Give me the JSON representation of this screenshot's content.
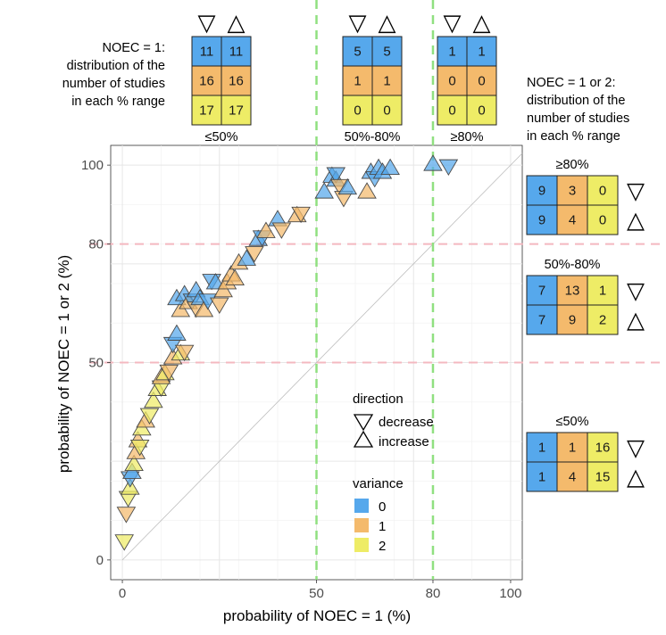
{
  "chart_data": {
    "type": "scatter",
    "xlabel": "probability of NOEC = 1 (%)",
    "ylabel": "probability of NOEC = 1 or 2 (%)",
    "xlim": [
      -3,
      103
    ],
    "ylim": [
      -5,
      105
    ],
    "x_ticks": [
      0,
      50,
      80,
      100
    ],
    "y_ticks": [
      0,
      50,
      80,
      100
    ],
    "grid": true,
    "reference_lines": {
      "vertical": [
        50,
        80
      ],
      "horizontal": [
        50,
        80
      ],
      "diagonal": true
    },
    "legend": {
      "placement": "inside-bottom-right",
      "direction_title": "direction",
      "direction_entries": [
        "decrease",
        "increase"
      ],
      "variance_title": "variance",
      "variance_entries": [
        "0",
        "1",
        "2"
      ]
    },
    "colors": {
      "0": "#56a8ec",
      "1": "#f4ba6c",
      "2": "#eeec66",
      "ref_vertical": "#90e080",
      "ref_horizontal": "#f4b8c0"
    },
    "points": [
      {
        "x": 0.5,
        "y": 5,
        "v": 2,
        "d": "decrease"
      },
      {
        "x": 1,
        "y": 12,
        "v": 1,
        "d": "decrease"
      },
      {
        "x": 1.5,
        "y": 16,
        "v": 2,
        "d": "decrease"
      },
      {
        "x": 2,
        "y": 18,
        "v": 2,
        "d": "increase"
      },
      {
        "x": 2,
        "y": 21,
        "v": 0,
        "d": "decrease"
      },
      {
        "x": 2.5,
        "y": 22,
        "v": 0,
        "d": "increase"
      },
      {
        "x": 3,
        "y": 24,
        "v": 2,
        "d": "increase"
      },
      {
        "x": 3.5,
        "y": 27,
        "v": 1,
        "d": "increase"
      },
      {
        "x": 4,
        "y": 30,
        "v": 1,
        "d": "increase"
      },
      {
        "x": 4.5,
        "y": 29,
        "v": 2,
        "d": "decrease"
      },
      {
        "x": 5,
        "y": 33,
        "v": 2,
        "d": "increase"
      },
      {
        "x": 6,
        "y": 35,
        "v": 1,
        "d": "increase"
      },
      {
        "x": 7,
        "y": 37,
        "v": 2,
        "d": "decrease"
      },
      {
        "x": 8,
        "y": 40,
        "v": 2,
        "d": "increase"
      },
      {
        "x": 9,
        "y": 43,
        "v": 2,
        "d": "increase"
      },
      {
        "x": 10,
        "y": 44,
        "v": 2,
        "d": "decrease"
      },
      {
        "x": 10,
        "y": 46,
        "v": 1,
        "d": "increase"
      },
      {
        "x": 11,
        "y": 47,
        "v": 2,
        "d": "increase"
      },
      {
        "x": 12,
        "y": 48,
        "v": 1,
        "d": "decrease"
      },
      {
        "x": 13,
        "y": 51,
        "v": 1,
        "d": "increase"
      },
      {
        "x": 13,
        "y": 55,
        "v": 0,
        "d": "decrease"
      },
      {
        "x": 14,
        "y": 57,
        "v": 0,
        "d": "increase"
      },
      {
        "x": 15,
        "y": 52,
        "v": 2,
        "d": "increase"
      },
      {
        "x": 16,
        "y": 53,
        "v": 1,
        "d": "decrease"
      },
      {
        "x": 15,
        "y": 63,
        "v": 1,
        "d": "increase"
      },
      {
        "x": 14,
        "y": 66,
        "v": 0,
        "d": "increase"
      },
      {
        "x": 16,
        "y": 67,
        "v": 0,
        "d": "increase"
      },
      {
        "x": 17,
        "y": 65,
        "v": 1,
        "d": "increase"
      },
      {
        "x": 18,
        "y": 66,
        "v": 0,
        "d": "decrease"
      },
      {
        "x": 19,
        "y": 64,
        "v": 1,
        "d": "decrease"
      },
      {
        "x": 19,
        "y": 68,
        "v": 0,
        "d": "increase"
      },
      {
        "x": 20,
        "y": 66,
        "v": 0,
        "d": "increase"
      },
      {
        "x": 21,
        "y": 63,
        "v": 1,
        "d": "increase"
      },
      {
        "x": 22,
        "y": 66,
        "v": 0,
        "d": "decrease"
      },
      {
        "x": 23,
        "y": 71,
        "v": 0,
        "d": "decrease"
      },
      {
        "x": 24,
        "y": 70,
        "v": 0,
        "d": "increase"
      },
      {
        "x": 25,
        "y": 65,
        "v": 1,
        "d": "decrease"
      },
      {
        "x": 26,
        "y": 68,
        "v": 1,
        "d": "increase"
      },
      {
        "x": 27,
        "y": 70,
        "v": 1,
        "d": "increase"
      },
      {
        "x": 28,
        "y": 72,
        "v": 1,
        "d": "increase"
      },
      {
        "x": 29,
        "y": 71,
        "v": 1,
        "d": "increase"
      },
      {
        "x": 30,
        "y": 75,
        "v": 1,
        "d": "increase"
      },
      {
        "x": 32,
        "y": 76,
        "v": 0,
        "d": "increase"
      },
      {
        "x": 34,
        "y": 78,
        "v": 1,
        "d": "decrease"
      },
      {
        "x": 35,
        "y": 81,
        "v": 0,
        "d": "increase"
      },
      {
        "x": 36,
        "y": 82,
        "v": 0,
        "d": "decrease"
      },
      {
        "x": 37,
        "y": 83,
        "v": 1,
        "d": "increase"
      },
      {
        "x": 40,
        "y": 86,
        "v": 0,
        "d": "increase"
      },
      {
        "x": 41,
        "y": 84,
        "v": 1,
        "d": "decrease"
      },
      {
        "x": 45,
        "y": 87,
        "v": 1,
        "d": "increase"
      },
      {
        "x": 46,
        "y": 88,
        "v": 1,
        "d": "decrease"
      },
      {
        "x": 52,
        "y": 93,
        "v": 0,
        "d": "increase"
      },
      {
        "x": 54,
        "y": 97,
        "v": 0,
        "d": "increase"
      },
      {
        "x": 55,
        "y": 96,
        "v": 0,
        "d": "increase"
      },
      {
        "x": 55,
        "y": 98,
        "v": 0,
        "d": "decrease"
      },
      {
        "x": 56,
        "y": 95,
        "v": 1,
        "d": "decrease"
      },
      {
        "x": 57,
        "y": 92,
        "v": 1,
        "d": "decrease"
      },
      {
        "x": 58,
        "y": 94,
        "v": 0,
        "d": "increase"
      },
      {
        "x": 63,
        "y": 93,
        "v": 1,
        "d": "increase"
      },
      {
        "x": 64,
        "y": 98,
        "v": 0,
        "d": "increase"
      },
      {
        "x": 65,
        "y": 97,
        "v": 0,
        "d": "decrease"
      },
      {
        "x": 66,
        "y": 99,
        "v": 0,
        "d": "increase"
      },
      {
        "x": 67,
        "y": 98,
        "v": 0,
        "d": "increase"
      },
      {
        "x": 69,
        "y": 99,
        "v": 0,
        "d": "increase"
      },
      {
        "x": 80,
        "y": 100,
        "v": 0,
        "d": "increase"
      },
      {
        "x": 84,
        "y": 100,
        "v": 0,
        "d": "decrease"
      }
    ],
    "top_summary": {
      "note": [
        "NOEC = 1:",
        "distribution of the",
        "number of studies",
        "in each % range"
      ],
      "headers": [
        "▽",
        "△"
      ],
      "groups": [
        {
          "label": "≤50%",
          "rows": [
            [
              "11",
              "11"
            ],
            [
              "16",
              "16"
            ],
            [
              "17",
              "17"
            ]
          ]
        },
        {
          "label": "50%-80%",
          "rows": [
            [
              "5",
              "5"
            ],
            [
              "1",
              "1"
            ],
            [
              "0",
              "0"
            ]
          ]
        },
        {
          "label": "≥80%",
          "rows": [
            [
              "1",
              "1"
            ],
            [
              "0",
              "0"
            ],
            [
              "0",
              "0"
            ]
          ]
        }
      ]
    },
    "right_summary": {
      "note": [
        "NOEC = 1 or 2:",
        "distribution of the",
        "number of studies",
        "in each % range"
      ],
      "groups": [
        {
          "label": "≥80%",
          "rows": [
            {
              "values": [
                "9",
                "3",
                "0"
              ],
              "dir": "▽"
            },
            {
              "values": [
                "9",
                "4",
                "0"
              ],
              "dir": "△"
            }
          ]
        },
        {
          "label": "50%-80%",
          "rows": [
            {
              "values": [
                "7",
                "13",
                "1"
              ],
              "dir": "▽"
            },
            {
              "values": [
                "7",
                "9",
                "2"
              ],
              "dir": "△"
            }
          ]
        },
        {
          "label": "≤50%",
          "rows": [
            {
              "values": [
                "1",
                "1",
                "16"
              ],
              "dir": "▽"
            },
            {
              "values": [
                "1",
                "4",
                "15"
              ],
              "dir": "△"
            }
          ]
        }
      ]
    }
  }
}
